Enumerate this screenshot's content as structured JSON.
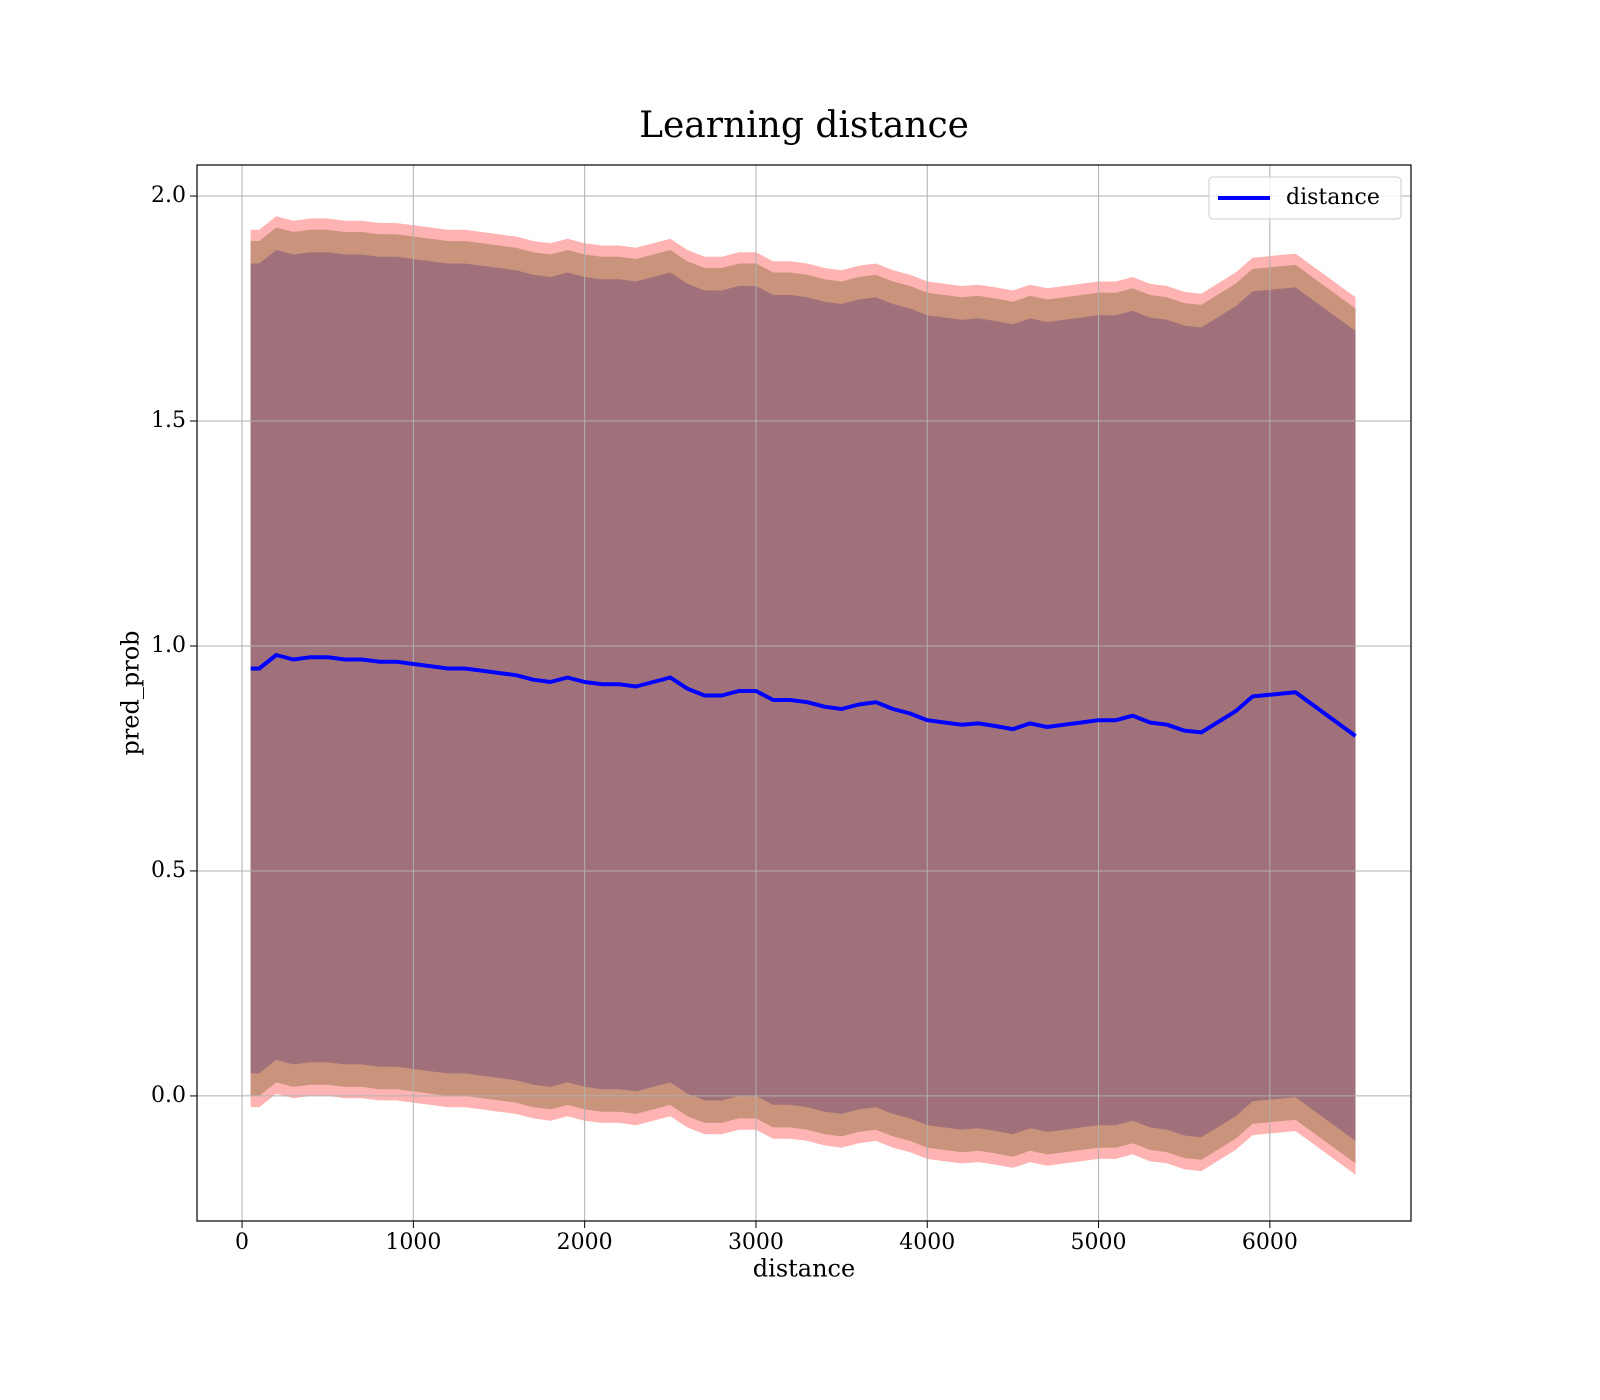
{
  "chart_data": {
    "type": "line",
    "title": "Learning distance",
    "xlabel": "distance",
    "ylabel": "pred_prob",
    "x": [
      50,
      100,
      200,
      300,
      400,
      500,
      600,
      700,
      800,
      900,
      1000,
      1100,
      1200,
      1300,
      1400,
      1500,
      1600,
      1700,
      1800,
      1900,
      2000,
      2100,
      2200,
      2300,
      2400,
      2500,
      2600,
      2700,
      2800,
      2900,
      3000,
      3100,
      3200,
      3300,
      3400,
      3500,
      3600,
      3700,
      3800,
      3900,
      4000,
      4100,
      4200,
      4300,
      4400,
      4500,
      4600,
      4700,
      4800,
      4900,
      5000,
      5100,
      5200,
      5300,
      5400,
      5500,
      5600,
      5800,
      5900,
      6150,
      6500
    ],
    "series": [
      {
        "name": "distance",
        "color": "#0000ff",
        "values": [
          0.95,
          0.95,
          0.98,
          0.97,
          0.975,
          0.975,
          0.97,
          0.97,
          0.965,
          0.965,
          0.96,
          0.955,
          0.95,
          0.95,
          0.945,
          0.94,
          0.935,
          0.925,
          0.92,
          0.93,
          0.92,
          0.915,
          0.915,
          0.91,
          0.92,
          0.93,
          0.905,
          0.89,
          0.89,
          0.9,
          0.9,
          0.88,
          0.88,
          0.875,
          0.865,
          0.86,
          0.87,
          0.875,
          0.86,
          0.85,
          0.835,
          0.83,
          0.825,
          0.828,
          0.822,
          0.815,
          0.828,
          0.82,
          0.825,
          0.83,
          0.835,
          0.835,
          0.845,
          0.83,
          0.825,
          0.812,
          0.808,
          0.855,
          0.888,
          0.897,
          0.8
        ],
        "bands": [
          {
            "color": "#ffb3b3",
            "error": 0.975
          },
          {
            "color": "#c9947b",
            "error": 0.95
          },
          {
            "color": "#a1717b",
            "error": 0.9
          }
        ]
      }
    ],
    "xlim": [
      -263,
      6824
    ],
    "ylim": [
      -0.278,
      2.069
    ],
    "xticks": [
      0,
      1000,
      2000,
      3000,
      4000,
      5000,
      6000
    ],
    "yticks": [
      {
        "value": 0,
        "label": "0.0"
      },
      0.5,
      {
        "value": 1,
        "label": "1.0"
      },
      1.5,
      {
        "value": 2,
        "label": "2.0"
      }
    ],
    "grid": true,
    "legend": "upper right"
  }
}
